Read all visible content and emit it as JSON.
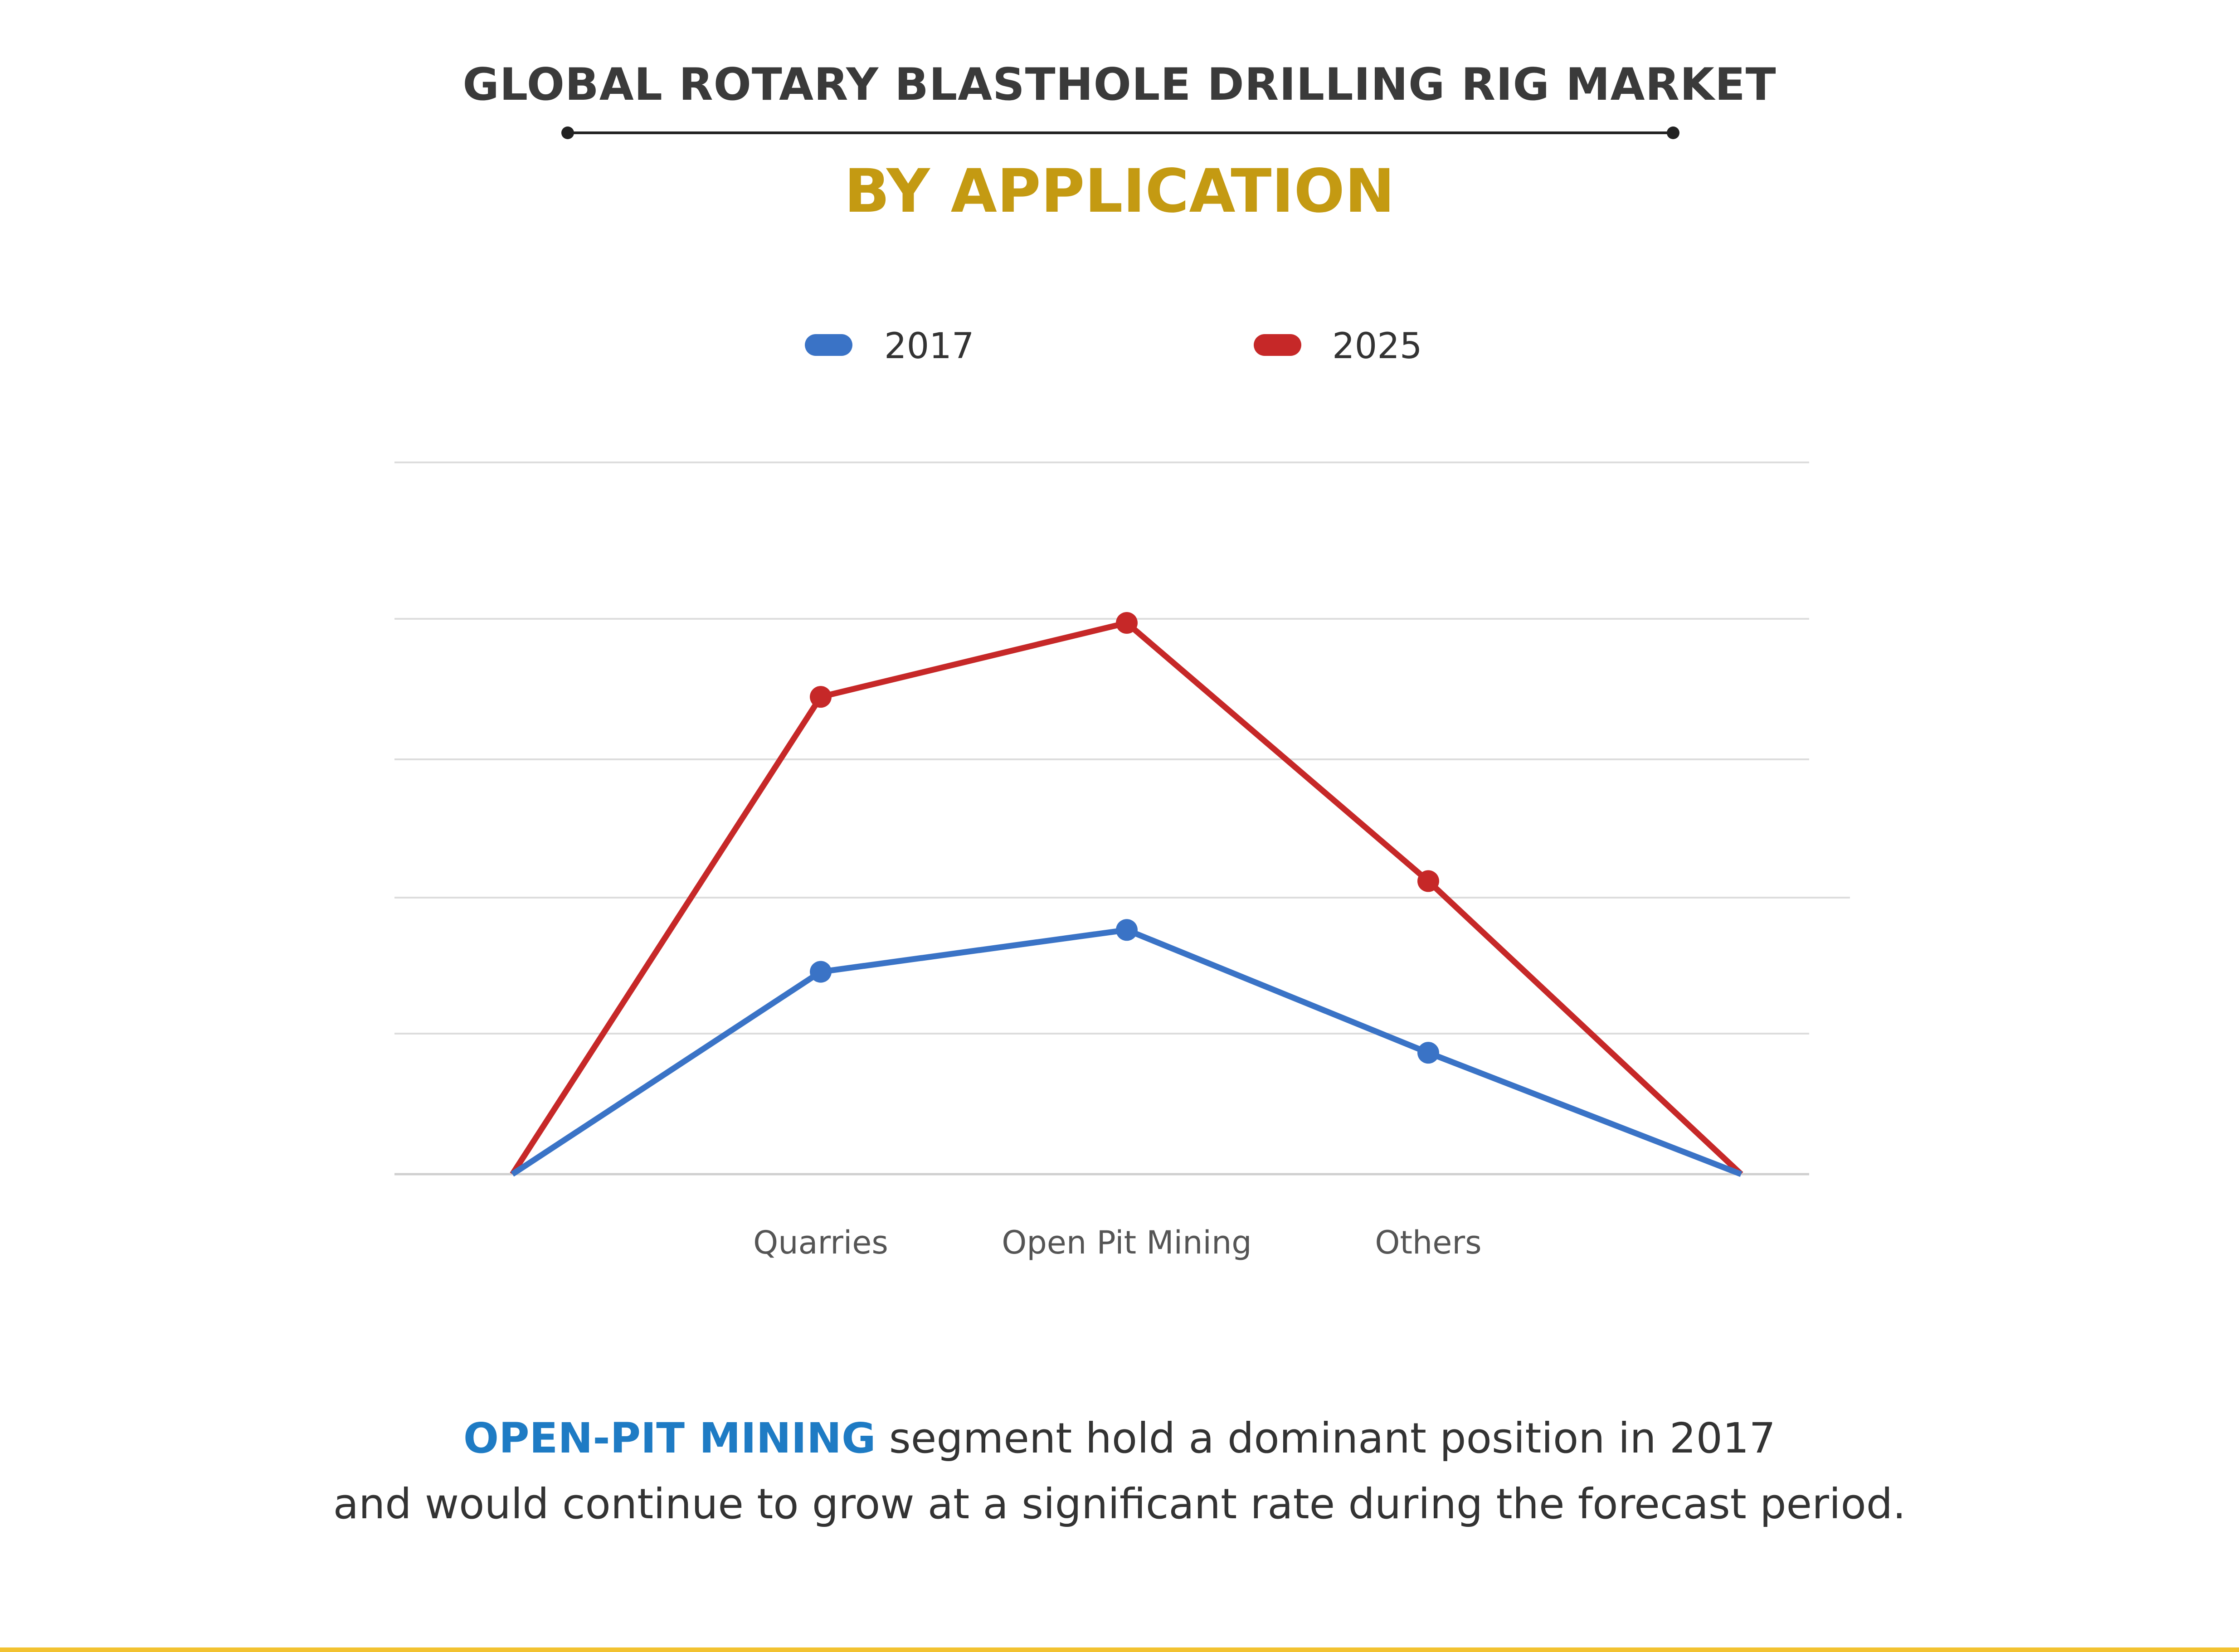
{
  "header": {
    "title": "GLOBAL ROTARY BLASTHOLE DRILLING RIG MARKET",
    "subtitle": "BY APPLICATION"
  },
  "footnote": {
    "highlight": "OPEN-PIT MINING",
    "line1_rest": " segment hold a dominant position in 2017",
    "line2": "and would continue to grow at a significant rate during the forecast period."
  },
  "colors": {
    "subtitle": "#C49A12",
    "highlight": "#1E7BC4",
    "series_2017": "#3A73C6",
    "series_2025": "#C62828",
    "grid": "#DDDDDD",
    "rule": "#F2C230"
  },
  "chart_data": {
    "type": "line",
    "categories": [
      "",
      "Quarries",
      "Open Pit Mining",
      "Others",
      ""
    ],
    "series": [
      {
        "name": "2017",
        "values": [
          0,
          1.45,
          1.75,
          0.87,
          0
        ]
      },
      {
        "name": "2025",
        "values": [
          0,
          3.42,
          3.95,
          2.1,
          0
        ]
      }
    ],
    "ylim": [
      0,
      5.1
    ],
    "grid": true,
    "legend": "top-center",
    "xlabel": "",
    "ylabel": ""
  }
}
